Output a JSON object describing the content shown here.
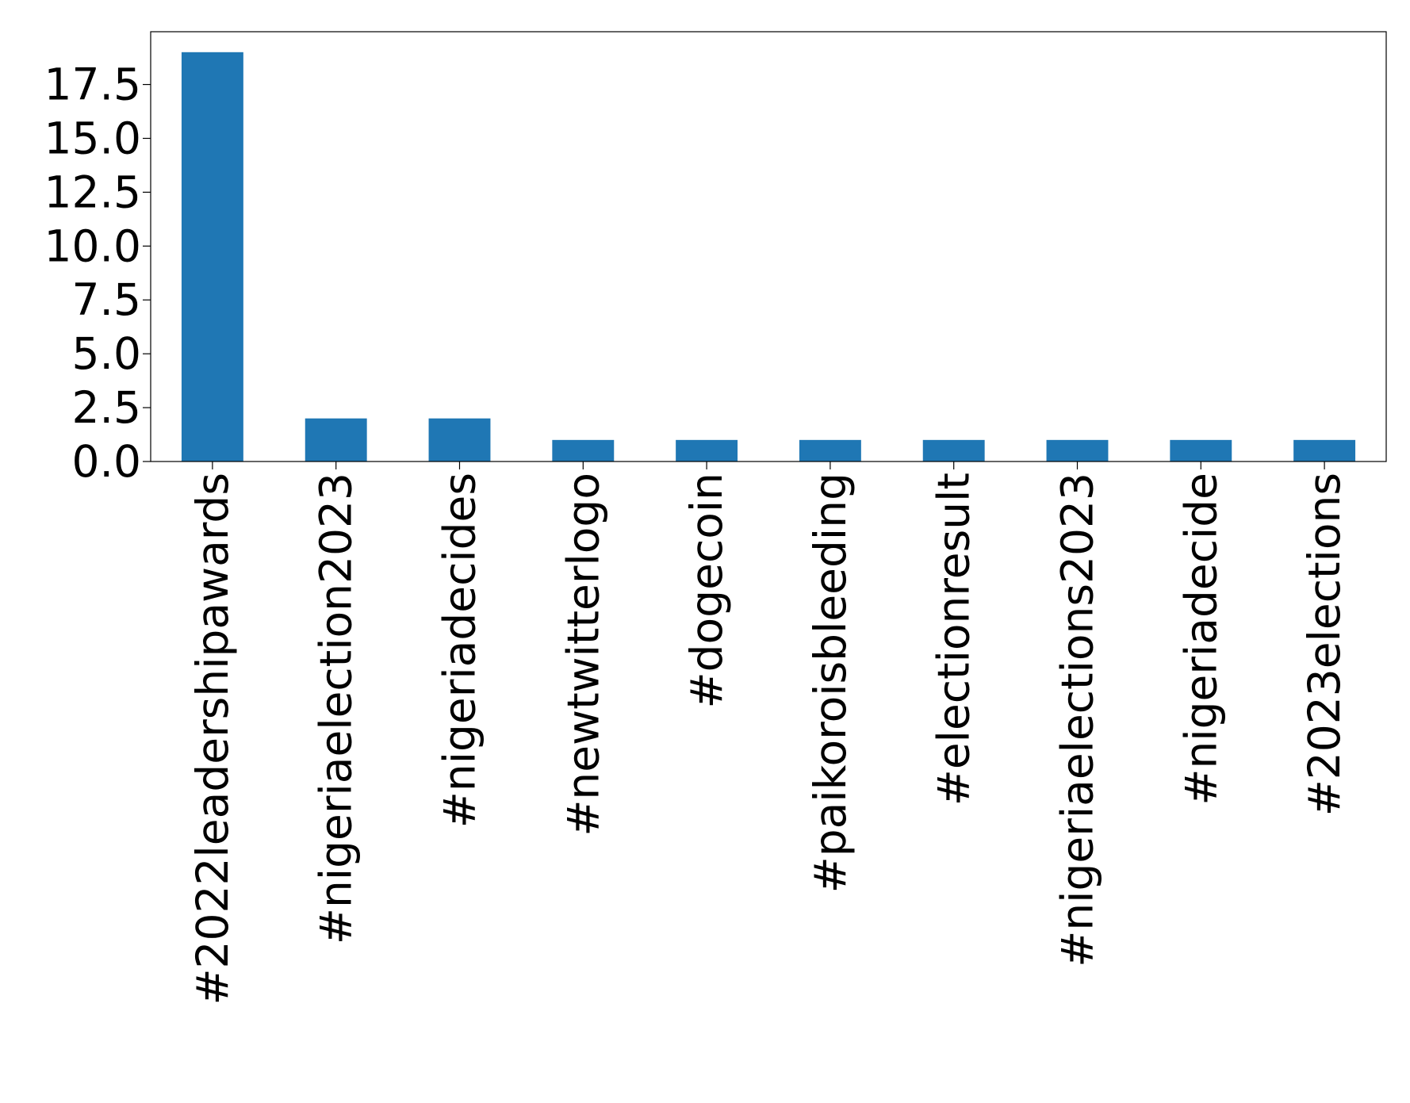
{
  "chart_data": {
    "type": "bar",
    "title": "",
    "xlabel": "",
    "ylabel": "",
    "categories": [
      "#2022leadershipawards",
      "#nigeriaelection2023",
      "#nigeriadecides",
      "#newtwitterlogo",
      "#dogecoin",
      "#paikoroisbleeding",
      "#electionresult",
      "#nigeriaelections2023",
      "#nigeriadecide",
      "#2023elections"
    ],
    "values": [
      19,
      2,
      2,
      1,
      1,
      1,
      1,
      1,
      1,
      1
    ],
    "ylim": [
      0,
      19.95
    ],
    "yticks": [
      0.0,
      2.5,
      5.0,
      7.5,
      10.0,
      12.5,
      15.0,
      17.5
    ],
    "ytick_labels": [
      "0.0",
      "2.5",
      "5.0",
      "7.5",
      "10.0",
      "12.5",
      "15.0",
      "17.5"
    ],
    "bar_color": "#1f77b4",
    "grid": false,
    "legend": "none"
  }
}
